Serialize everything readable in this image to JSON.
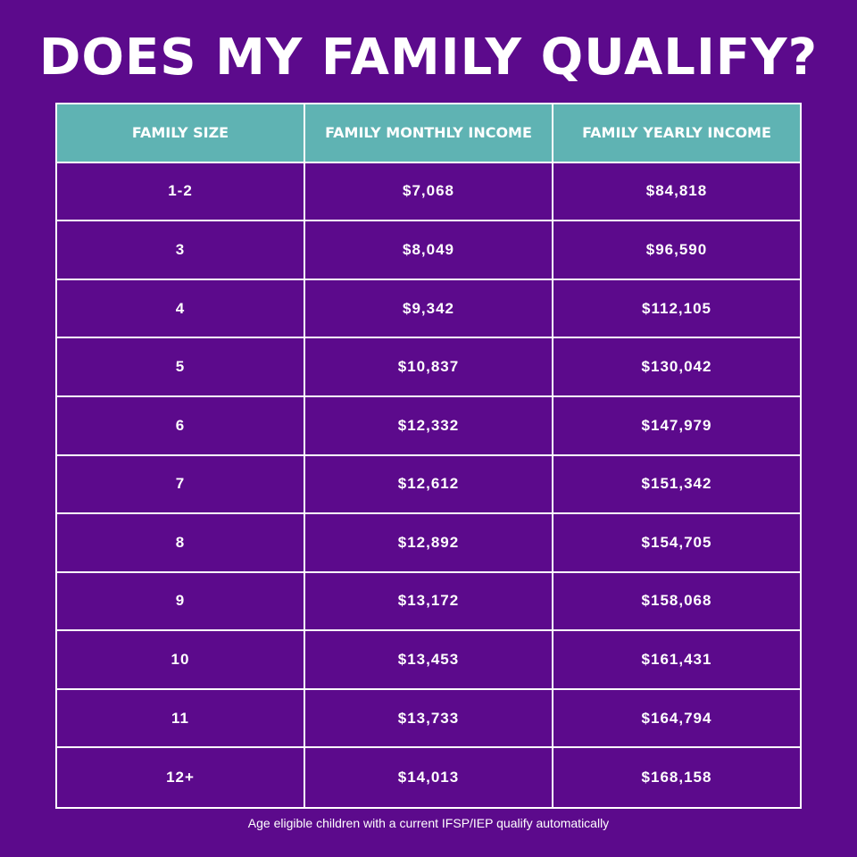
{
  "title": "DOES MY FAMILY QUALIFY?",
  "colors": {
    "background": "#5c0a8c",
    "header_background": "#5fb3b3",
    "text": "#ffffff",
    "grid_lines": "#ffffff"
  },
  "table": {
    "headers": [
      "FAMILY SIZE",
      "FAMILY MONTHLY INCOME",
      "FAMILY YEARLY INCOME"
    ],
    "rows": [
      [
        "1-2",
        "$7,068",
        "$84,818"
      ],
      [
        "3",
        "$8,049",
        "$96,590"
      ],
      [
        "4",
        "$9,342",
        "$112,105"
      ],
      [
        "5",
        "$10,837",
        "$130,042"
      ],
      [
        "6",
        "$12,332",
        "$147,979"
      ],
      [
        "7",
        "$12,612",
        "$151,342"
      ],
      [
        "8",
        "$12,892",
        "$154,705"
      ],
      [
        "9",
        "$13,172",
        "$158,068"
      ],
      [
        "10",
        "$13,453",
        "$161,431"
      ],
      [
        "11",
        "$13,733",
        "$164,794"
      ],
      [
        "12+",
        "$14,013",
        "$168,158"
      ]
    ]
  },
  "footnote": "Age eligible children with a current IFSP/IEP qualify automatically"
}
